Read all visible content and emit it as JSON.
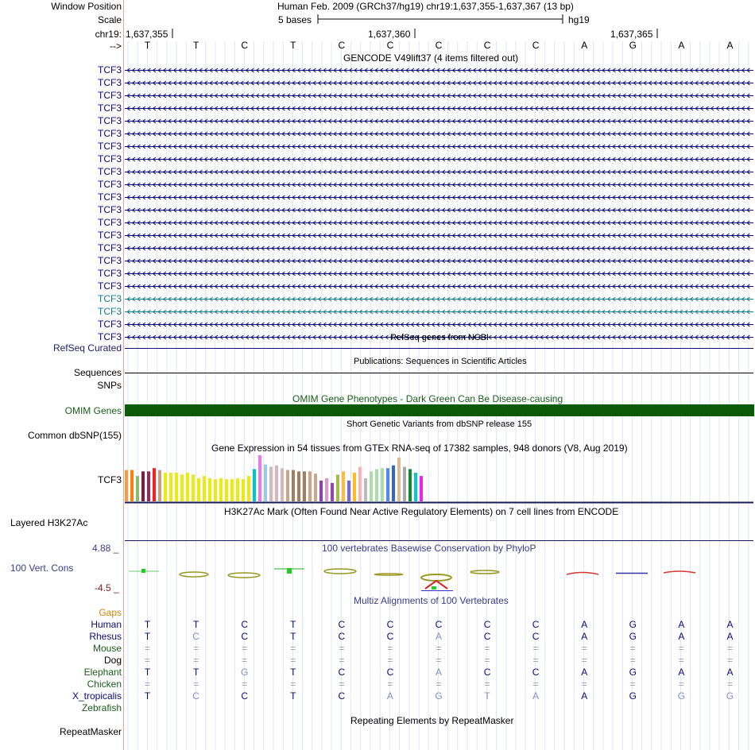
{
  "header": {
    "window_position_label": "Window Position",
    "scale_label": "Scale",
    "chrom_label": "chr19:",
    "strand_label": "-->",
    "position_title": "Human Feb. 2009 (GRCh37/hg19)   chr19:1,637,355-1,637,367 (13 bp)",
    "scale_text": "5 bases",
    "assembly": "hg19",
    "coords": [
      "1,637,355",
      "1,637,360",
      "1,637,365"
    ]
  },
  "bases": [
    "T",
    "T",
    "C",
    "T",
    "C",
    "C",
    "C",
    "C",
    "C",
    "A",
    "G",
    "A",
    "A"
  ],
  "gencode": {
    "title": "GENCODE V49lift37 (4 items filtered out)",
    "labels": [
      "TCF3",
      "TCF3",
      "TCF3",
      "TCF3",
      "TCF3",
      "TCF3",
      "TCF3",
      "TCF3",
      "TCF3",
      "TCF3",
      "TCF3",
      "TCF3",
      "TCF3",
      "TCF3",
      "TCF3",
      "TCF3",
      "TCF3",
      "TCF3",
      "TCF3",
      "TCF3",
      "TCF3",
      "TCF3"
    ],
    "colors": [
      "#0a0a7a",
      "#0a0a7a",
      "#0a0a7a",
      "#0a0a7a",
      "#0a0a7a",
      "#0a0a7a",
      "#0a0a7a",
      "#0a0a7a",
      "#0a0a7a",
      "#0a0a7a",
      "#0a0a7a",
      "#0a0a7a",
      "#0a0a7a",
      "#0a0a7a",
      "#0a0a7a",
      "#0a0a7a",
      "#0a0a7a",
      "#0a0a7a",
      "#0f7c8f",
      "#0f7c8f",
      "#0a0a7a",
      "#0a0a7a"
    ]
  },
  "refseq": {
    "title": "RefSeq genes from NCBI",
    "label": "RefSeq Curated"
  },
  "publications": {
    "title": "Publications: Sequences in Scientific Articles",
    "label": "Sequences"
  },
  "snps": {
    "label": "SNPs"
  },
  "omim": {
    "title": "OMIM Gene Phenotypes - Dark Green Can Be Disease-causing",
    "label": "OMIM Genes",
    "color": "#0a5a0a"
  },
  "dbsnp": {
    "title": "Short Genetic Variants from dbSNP release 155",
    "label": "Common dbSNP(155)"
  },
  "gtex": {
    "title": "Gene Expression in 54 tissues from GTEx RNA-seq of 17382 samples, 948 donors (V8, Aug 2019)",
    "label": "TCF3",
    "levels": [
      0.68,
      0.68,
      0.55,
      0.65,
      0.65,
      0.72,
      0.68,
      0.62,
      0.62,
      0.62,
      0.58,
      0.62,
      0.58,
      0.5,
      0.55,
      0.5,
      0.48,
      0.5,
      0.48,
      0.48,
      0.5,
      0.48,
      0.55,
      0.7,
      1.0,
      0.8,
      0.75,
      0.78,
      0.72,
      0.68,
      0.68,
      0.65,
      0.65,
      0.65,
      0.6,
      0.45,
      0.5,
      0.4,
      0.58,
      0.65,
      0.45,
      0.62,
      0.75,
      0.5,
      0.65,
      0.7,
      0.72,
      0.72,
      0.78,
      0.95,
      0.75,
      0.7,
      0.62,
      0.55
    ],
    "colors": [
      "#ff9a3a",
      "#ff7f0e",
      "#8bbc6e",
      "#7b1f40",
      "#aa2255",
      "#ee2222",
      "#c8a080",
      "#ebeb10",
      "#ebeb10",
      "#ebeb10",
      "#ebeb10",
      "#ebeb10",
      "#ebeb10",
      "#ebeb10",
      "#ebeb10",
      "#ebeb10",
      "#ebeb10",
      "#ebeb10",
      "#ebeb10",
      "#ebeb10",
      "#ebeb10",
      "#ebeb10",
      "#ebeb10",
      "#00c8c8",
      "#ee77ee",
      "#99ccdd",
      "#d4b8b8",
      "#d4b8b8",
      "#d4b8b8",
      "#c8a888",
      "#a08060",
      "#a08060",
      "#a08060",
      "#c8a888",
      "#c8a888",
      "#8844aa",
      "#dd99cc",
      "#9944aa",
      "#aabb44",
      "#ffbb44",
      "#7766dd",
      "#ffbb22",
      "#ffb0b0",
      "#bbbbbb",
      "#aaddaa",
      "#aaddaa",
      "#aaddaa",
      "#5588ee",
      "#3366cc",
      "#ddbb99",
      "#aaaaaa",
      "#118833",
      "#00cccc",
      "#ee22ee"
    ]
  },
  "h3k27ac": {
    "title": "H3K27Ac Mark (Often Found Near Active Regulatory Elements) on 7 cell lines from ENCODE",
    "label": "Layered H3K27Ac"
  },
  "cons": {
    "title": "100 vertebrates Basewise Conservation by PhyloP",
    "label": "100 Vert. Cons",
    "max": "4.88 _",
    "min": "-4.5 _"
  },
  "multiz": {
    "title": "Multiz Alignments of 100 Vertebrates",
    "gaps_label": "Gaps",
    "species": [
      {
        "name": "Human",
        "bases": [
          "T",
          "T",
          "C",
          "T",
          "C",
          "C",
          "C",
          "C",
          "C",
          "A",
          "G",
          "A",
          "A"
        ]
      },
      {
        "name": "Rhesus",
        "bases": [
          "T",
          "C",
          "C",
          "T",
          "C",
          "C",
          "A",
          "C",
          "C",
          "A",
          "G",
          "A",
          "A"
        ]
      },
      {
        "name": "Mouse",
        "bases": [
          "=",
          "=",
          "=",
          "=",
          "=",
          "=",
          "=",
          "=",
          "=",
          "=",
          "=",
          "=",
          "="
        ]
      },
      {
        "name": "Dog",
        "bases": [
          "=",
          "=",
          "=",
          "=",
          "=",
          "=",
          "=",
          "=",
          "=",
          "=",
          "=",
          "=",
          "="
        ]
      },
      {
        "name": "Elephant",
        "bases": [
          "T",
          "T",
          "G",
          "T",
          "C",
          "C",
          "A",
          "C",
          "C",
          "A",
          "G",
          "A",
          "A"
        ]
      },
      {
        "name": "Chicken",
        "bases": [
          "=",
          "=",
          "=",
          "=",
          "=",
          "=",
          "=",
          "=",
          "=",
          "=",
          "=",
          "=",
          "="
        ]
      },
      {
        "name": "X_tropicalis",
        "bases": [
          "T",
          "C",
          "C",
          "T",
          "C",
          "A",
          "G",
          "T",
          "A",
          "A",
          "G",
          "G",
          "G"
        ]
      },
      {
        "name": "Zebrafish",
        "bases": []
      }
    ]
  },
  "repeatmasker": {
    "title": "Repeating Elements by RepeatMasker",
    "label": "RepeatMasker"
  }
}
